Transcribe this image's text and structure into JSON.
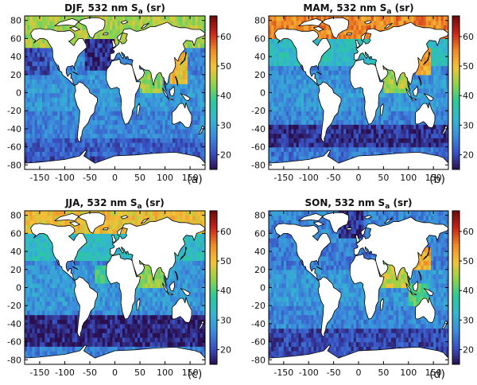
{
  "panels": [
    {
      "id": "a",
      "title_prefix": "DJF, 532 nm S",
      "title_sub": "a",
      "title_suffix": " (sr)",
      "panel_label": "(a)",
      "season": "DJF",
      "pattern": "djf"
    },
    {
      "id": "b",
      "title_prefix": "MAM, 532 nm S",
      "title_sub": "a",
      "title_suffix": " (sr)",
      "panel_label": "(b)",
      "season": "MAM",
      "pattern": "mam"
    },
    {
      "id": "c",
      "title_prefix": "JJA, 532 nm S",
      "title_sub": "a",
      "title_suffix": " (sr)",
      "panel_label": "(c)",
      "season": "JJA",
      "pattern": "jja"
    },
    {
      "id": "d",
      "title_prefix": "SON, 532 nm S",
      "title_sub": "a",
      "title_suffix": " (sr)",
      "panel_label": "(d)",
      "season": "SON",
      "pattern": "son"
    }
  ],
  "axes": {
    "x_ticks": [
      "-150",
      "-100",
      "-50",
      "0",
      "50",
      "100",
      "150"
    ],
    "y_ticks": [
      "80",
      "60",
      "40",
      "20",
      "0",
      "-20",
      "-40",
      "-60",
      "-80"
    ]
  },
  "colorbar": {
    "ticks": [
      "60",
      "50",
      "40",
      "30",
      "20"
    ],
    "min": 15,
    "max": 67,
    "colors": [
      "#2a0f4f",
      "#3a52c4",
      "#3c8ddc",
      "#34b7d0",
      "#2bc99b",
      "#8fd34a",
      "#f3c43a",
      "#f08a28",
      "#c8251a",
      "#6e0b0b"
    ]
  },
  "map": {
    "lon_range": [
      -180,
      180
    ],
    "lat_range": [
      -85,
      85
    ],
    "land_color": "#ffffff",
    "coast_color": "#000000"
  }
}
